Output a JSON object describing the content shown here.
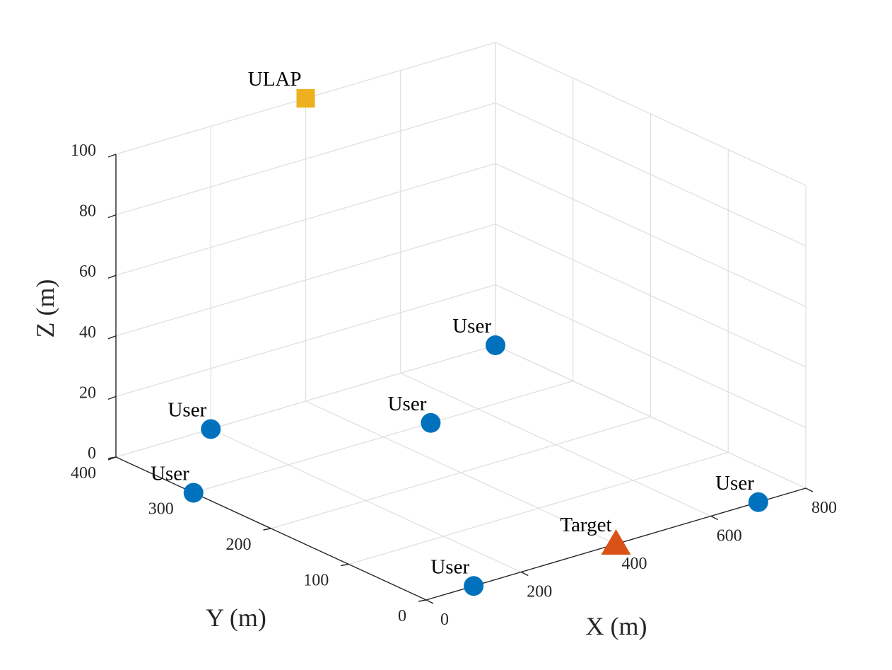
{
  "chart_data": {
    "type": "scatter",
    "view": "3d",
    "xlabel": "X (m)",
    "ylabel": "Y (m)",
    "zlabel": "Z (m)",
    "xlim": [
      0,
      800
    ],
    "ylim": [
      0,
      400
    ],
    "zlim": [
      0,
      100
    ],
    "x_ticks": [
      0,
      200,
      400,
      600,
      800
    ],
    "y_ticks": [
      0,
      100,
      200,
      300,
      400
    ],
    "z_ticks": [
      0,
      20,
      40,
      60,
      80,
      100
    ],
    "grid": true,
    "points": [
      {
        "label": "ULAP",
        "x": 400,
        "y": 400,
        "z": 100,
        "marker": "square",
        "color": "#EDB120"
      },
      {
        "label": "Target",
        "x": 400,
        "y": 0,
        "z": 0,
        "marker": "triangle",
        "color": "#D95319"
      },
      {
        "label": "User",
        "x": 100,
        "y": 0,
        "z": 0,
        "marker": "circle",
        "color": "#0072BD"
      },
      {
        "label": "User",
        "x": 700,
        "y": 0,
        "z": 0,
        "marker": "circle",
        "color": "#0072BD"
      },
      {
        "label": "User",
        "x": 0,
        "y": 300,
        "z": 0,
        "marker": "circle",
        "color": "#0072BD"
      },
      {
        "label": "User",
        "x": 200,
        "y": 400,
        "z": 0,
        "marker": "circle",
        "color": "#0072BD"
      },
      {
        "label": "User",
        "x": 500,
        "y": 300,
        "z": 0,
        "marker": "circle",
        "color": "#0072BD"
      },
      {
        "label": "User",
        "x": 800,
        "y": 400,
        "z": 0,
        "marker": "circle",
        "color": "#0072BD"
      }
    ]
  }
}
